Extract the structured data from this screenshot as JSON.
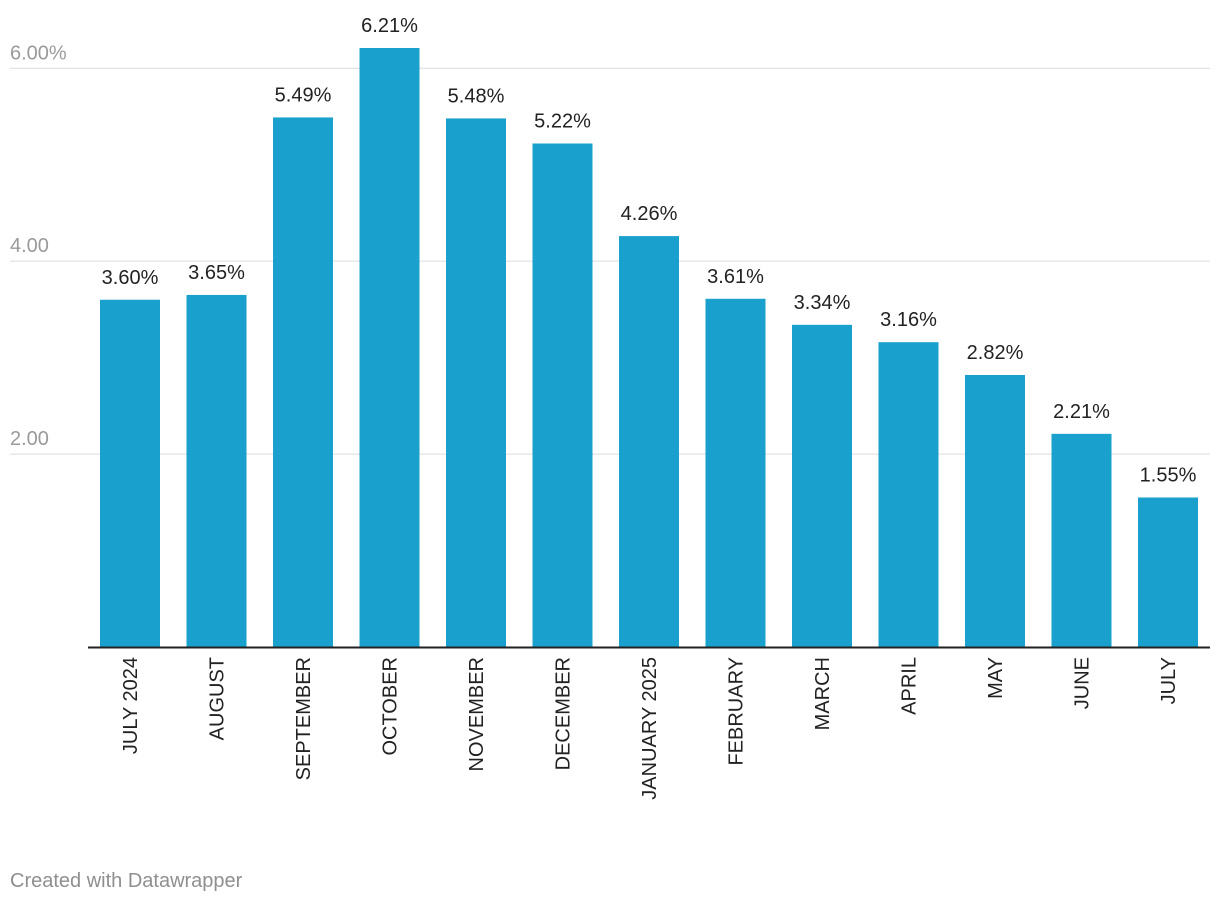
{
  "chart_data": {
    "type": "bar",
    "categories": [
      "JULY 2024",
      "AUGUST",
      "SEPTEMBER",
      "OCTOBER",
      "NOVEMBER",
      "DECEMBER",
      "JANUARY 2025",
      "FEBRUARY",
      "MARCH",
      "APRIL",
      "MAY",
      "JUNE",
      "JULY"
    ],
    "values": [
      3.6,
      3.65,
      5.49,
      6.21,
      5.48,
      5.22,
      4.26,
      3.61,
      3.34,
      3.16,
      2.82,
      2.21,
      1.55
    ],
    "value_labels": [
      "3.60%",
      "3.65%",
      "5.49%",
      "6.21%",
      "5.48%",
      "5.22%",
      "4.26%",
      "3.61%",
      "3.34%",
      "3.16%",
      "2.82%",
      "2.21%",
      "1.55%"
    ],
    "yticks": [
      {
        "value": 2,
        "label": "2.00"
      },
      {
        "value": 4,
        "label": "4.00"
      },
      {
        "value": 6,
        "label": "6.00%"
      }
    ],
    "ylim": [
      0,
      6.21
    ],
    "grid": true,
    "bar_color": "#1aa0cc",
    "title": "",
    "xlabel": "",
    "ylabel": ""
  },
  "credit": "Created with Datawrapper"
}
